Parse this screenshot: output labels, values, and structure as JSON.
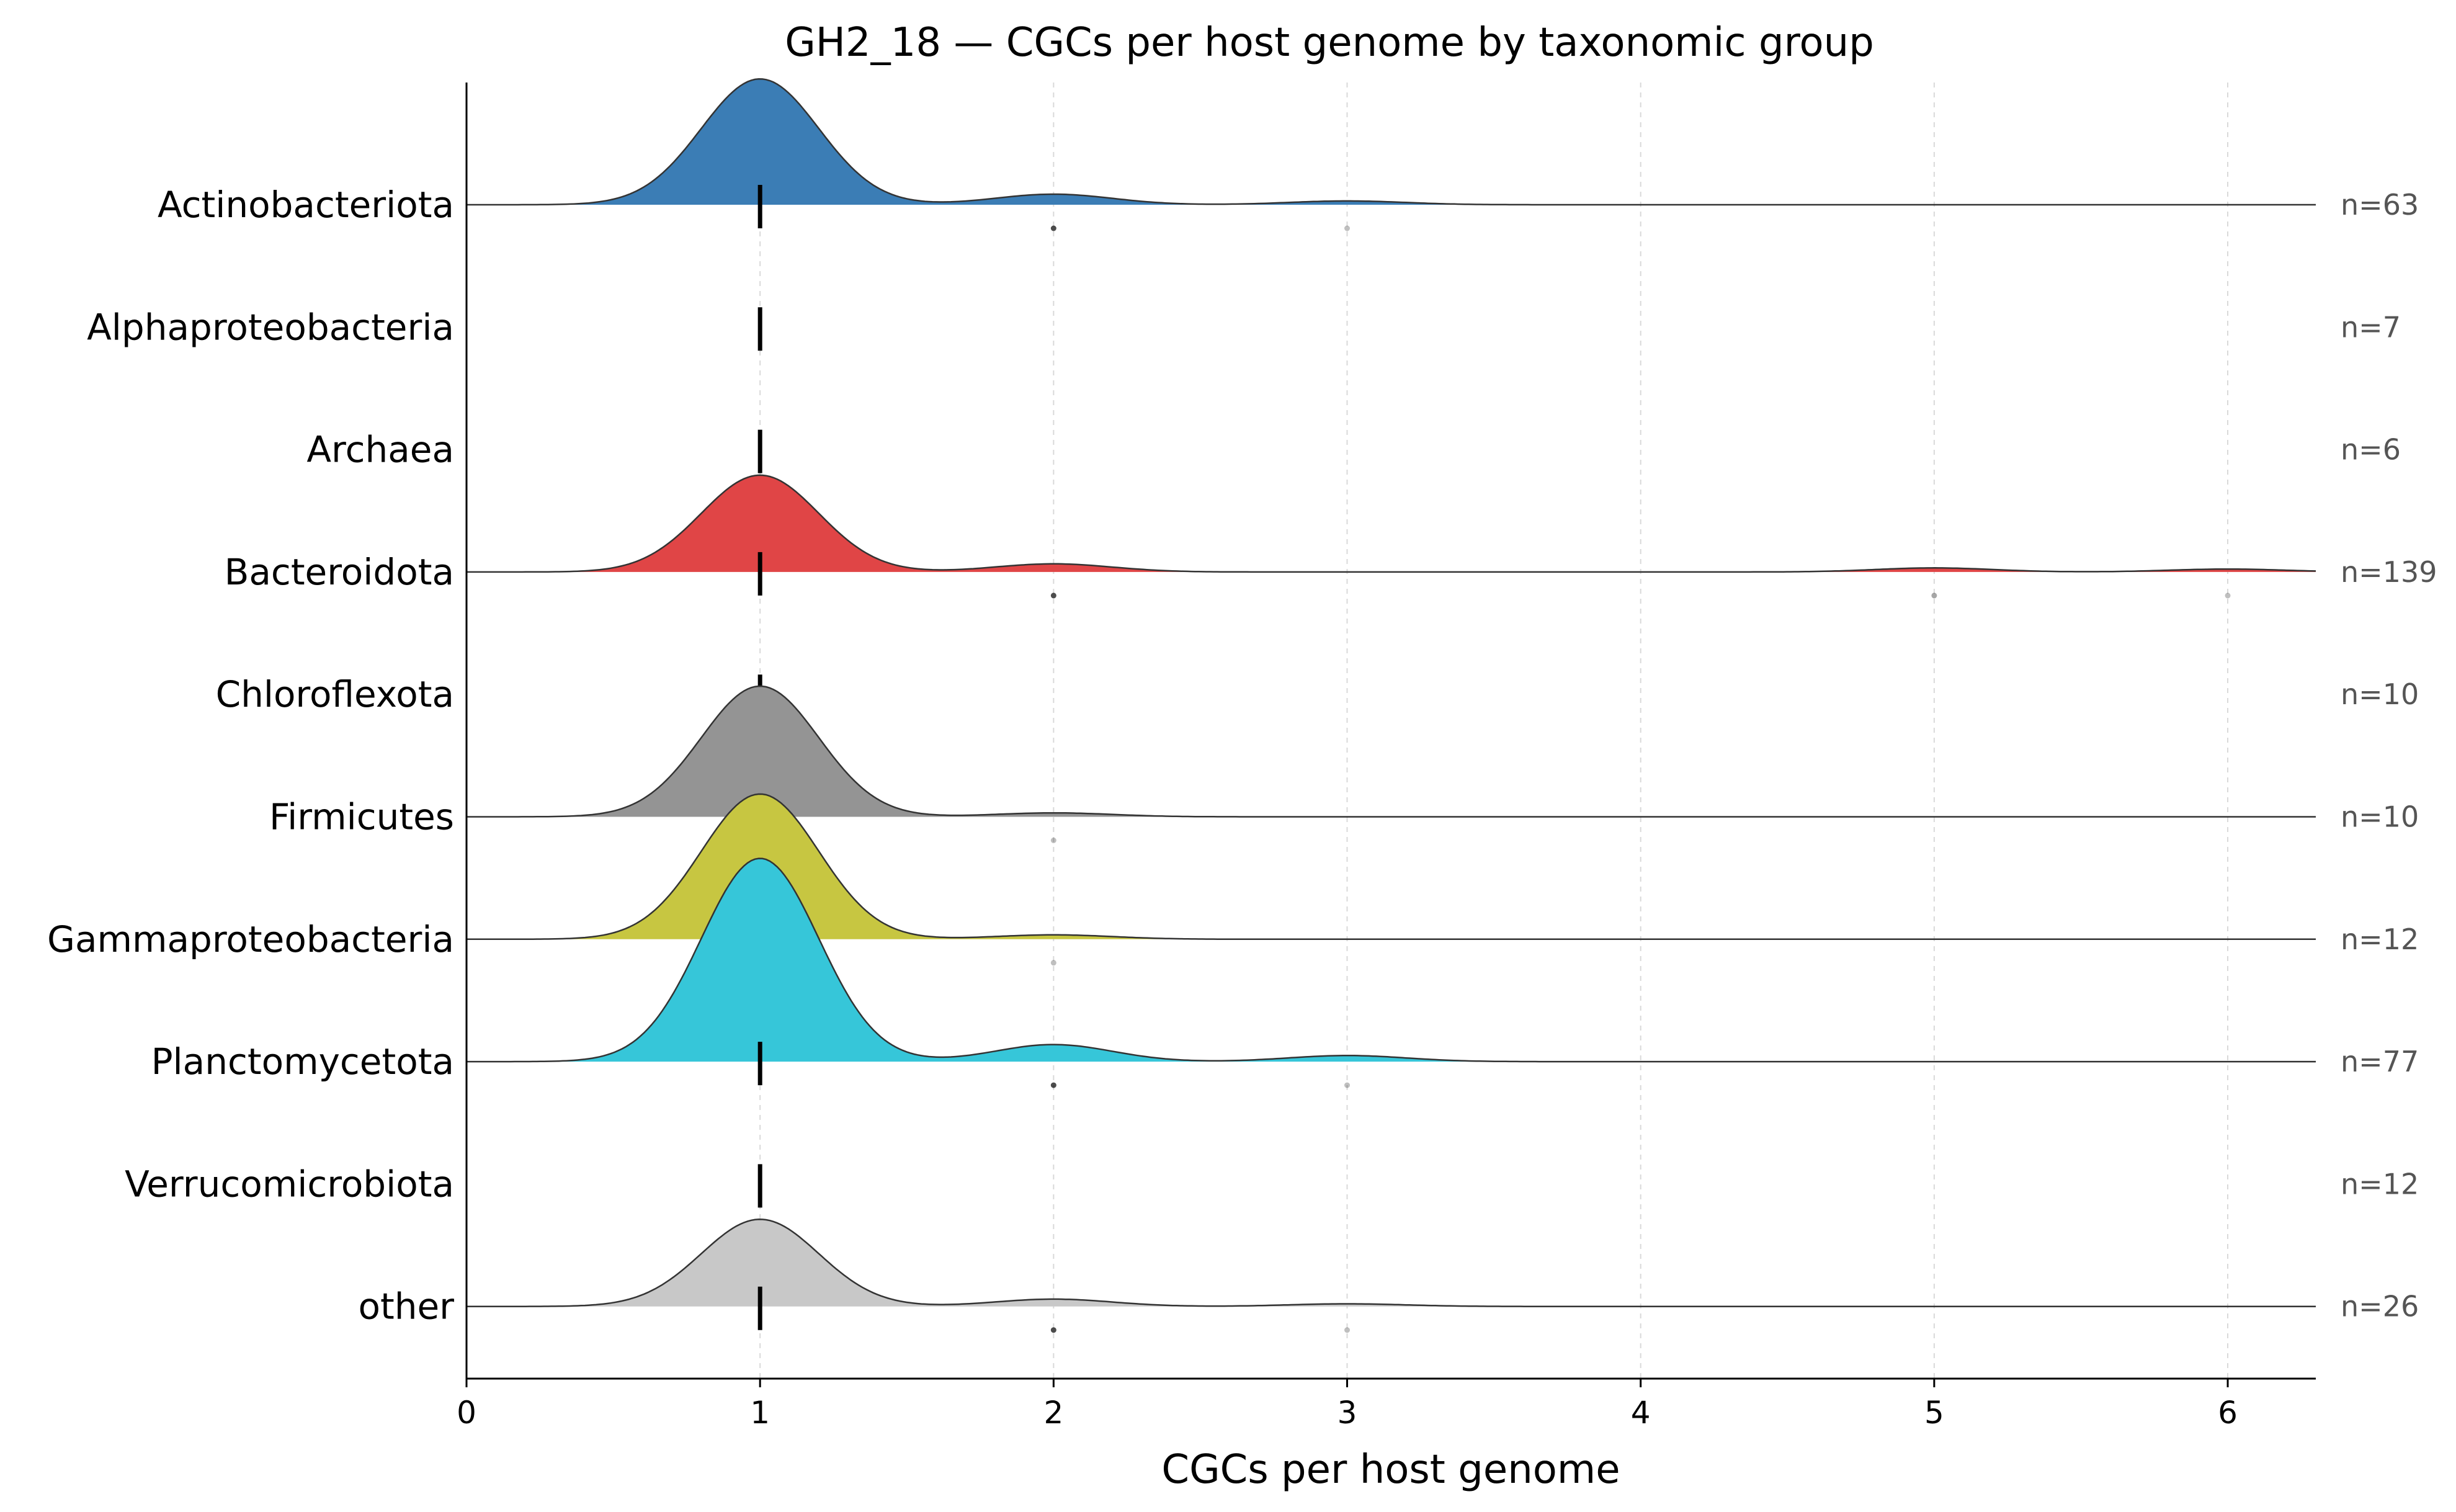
{
  "chart_data": {
    "type": "ridgeline",
    "title": "GH2_18 — CGCs per host genome by taxonomic group",
    "xlabel": "CGCs per host genome",
    "ylabel": "",
    "xlim": [
      0,
      6.3
    ],
    "xticks": [
      "0",
      "1",
      "2",
      "3",
      "4",
      "5",
      "6"
    ],
    "grid": "vertical dashed",
    "median_marker": "vertical black tick",
    "groups": [
      {
        "name": "Actinobacteriota",
        "count_label": "n=63",
        "n": 63,
        "color": "#3b7db5",
        "density": true,
        "median": 1,
        "peak": 1,
        "peak_height": 0.26,
        "points": [
          2,
          3
        ],
        "point_alpha": [
          0.7,
          0.25
        ]
      },
      {
        "name": "Alphaproteobacteria",
        "count_label": "n=7",
        "n": 7,
        "color": "#ff7f0e",
        "density": false,
        "median": 1,
        "points": []
      },
      {
        "name": "Archaea",
        "count_label": "n=6",
        "n": 6,
        "color": "#2ca02c",
        "density": false,
        "median": 1,
        "points": []
      },
      {
        "name": "Bacteroidota",
        "count_label": "n=139",
        "n": 139,
        "color": "#e04546",
        "density": true,
        "median": 1,
        "peak": 1,
        "peak_height": 0.2,
        "points": [
          2,
          5,
          6
        ],
        "point_alpha": [
          0.7,
          0.35,
          0.25
        ]
      },
      {
        "name": "Chloroflexota",
        "count_label": "n=10",
        "n": 10,
        "color": "#9467bd",
        "density": false,
        "median": 1,
        "points": []
      },
      {
        "name": "Firmicutes",
        "count_label": "n=10",
        "n": 10,
        "color": "#949494",
        "density": true,
        "median": 1,
        "peak": 1,
        "peak_height": 0.27,
        "points": [
          2
        ],
        "point_alpha": [
          0.25
        ]
      },
      {
        "name": "Gammaproteobacteria",
        "count_label": "n=12",
        "n": 12,
        "color": "#c7c641",
        "density": true,
        "median": 1,
        "peak": 1,
        "peak_height": 0.3,
        "points": [
          2
        ],
        "point_alpha": [
          0.25
        ]
      },
      {
        "name": "Planctomycetota",
        "count_label": "n=77",
        "n": 77,
        "color": "#36c6d9",
        "density": true,
        "median": 1,
        "peak": 1,
        "peak_height": 0.42,
        "points": [
          2,
          3
        ],
        "point_alpha": [
          0.7,
          0.25
        ]
      },
      {
        "name": "Verrucomicrobiota",
        "count_label": "n=12",
        "n": 12,
        "color": "#17becf",
        "density": false,
        "median": 1,
        "points": []
      },
      {
        "name": "other",
        "count_label": "n=26",
        "n": 26,
        "color": "#c8c8c8",
        "density": true,
        "median": 1,
        "peak": 1,
        "peak_height": 0.18,
        "points": [
          2,
          3
        ],
        "point_alpha": [
          0.7,
          0.25
        ]
      }
    ]
  }
}
